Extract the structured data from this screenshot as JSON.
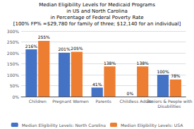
{
  "chart_data": {
    "type": "bar",
    "title": "Median Eligibility Levels for Medicaid Programs\nin US and North Carolina\nin Percentage of Federal Poverty Rate\n[100% FP% =$29,780 for family of three; $12,140 for an individual]",
    "categories": [
      "Children",
      "Pregnant Women",
      "Parents",
      "Childless Adults",
      "Seniors & People with\nDisabilities"
    ],
    "series": [
      {
        "name": "Median Eligibility Levels: North Carolina",
        "color": "#4472C4",
        "values": [
          216,
          201,
          41,
          0,
          100
        ],
        "value_labels": [
          "216%",
          "201%",
          "41%",
          "0%",
          "100%"
        ]
      },
      {
        "name": "Median Eligibility Levels: USA",
        "color": "#ED7D31",
        "values": [
          255,
          205,
          138,
          138,
          78
        ],
        "value_labels": [
          "255%",
          "205%",
          "138%",
          "138%",
          "78%"
        ]
      }
    ],
    "ylim": [
      0,
      300
    ],
    "yticks": [
      {
        "value": 0,
        "label": "0%"
      },
      {
        "value": 50,
        "label": "50%"
      },
      {
        "value": 100,
        "label": "100%"
      },
      {
        "value": 150,
        "label": "150%"
      },
      {
        "value": 200,
        "label": "200%"
      },
      {
        "value": 250,
        "label": "250%"
      },
      {
        "value": 300,
        "label": "300%"
      }
    ],
    "grid": true,
    "data_labels": true,
    "legend": "bottom"
  }
}
